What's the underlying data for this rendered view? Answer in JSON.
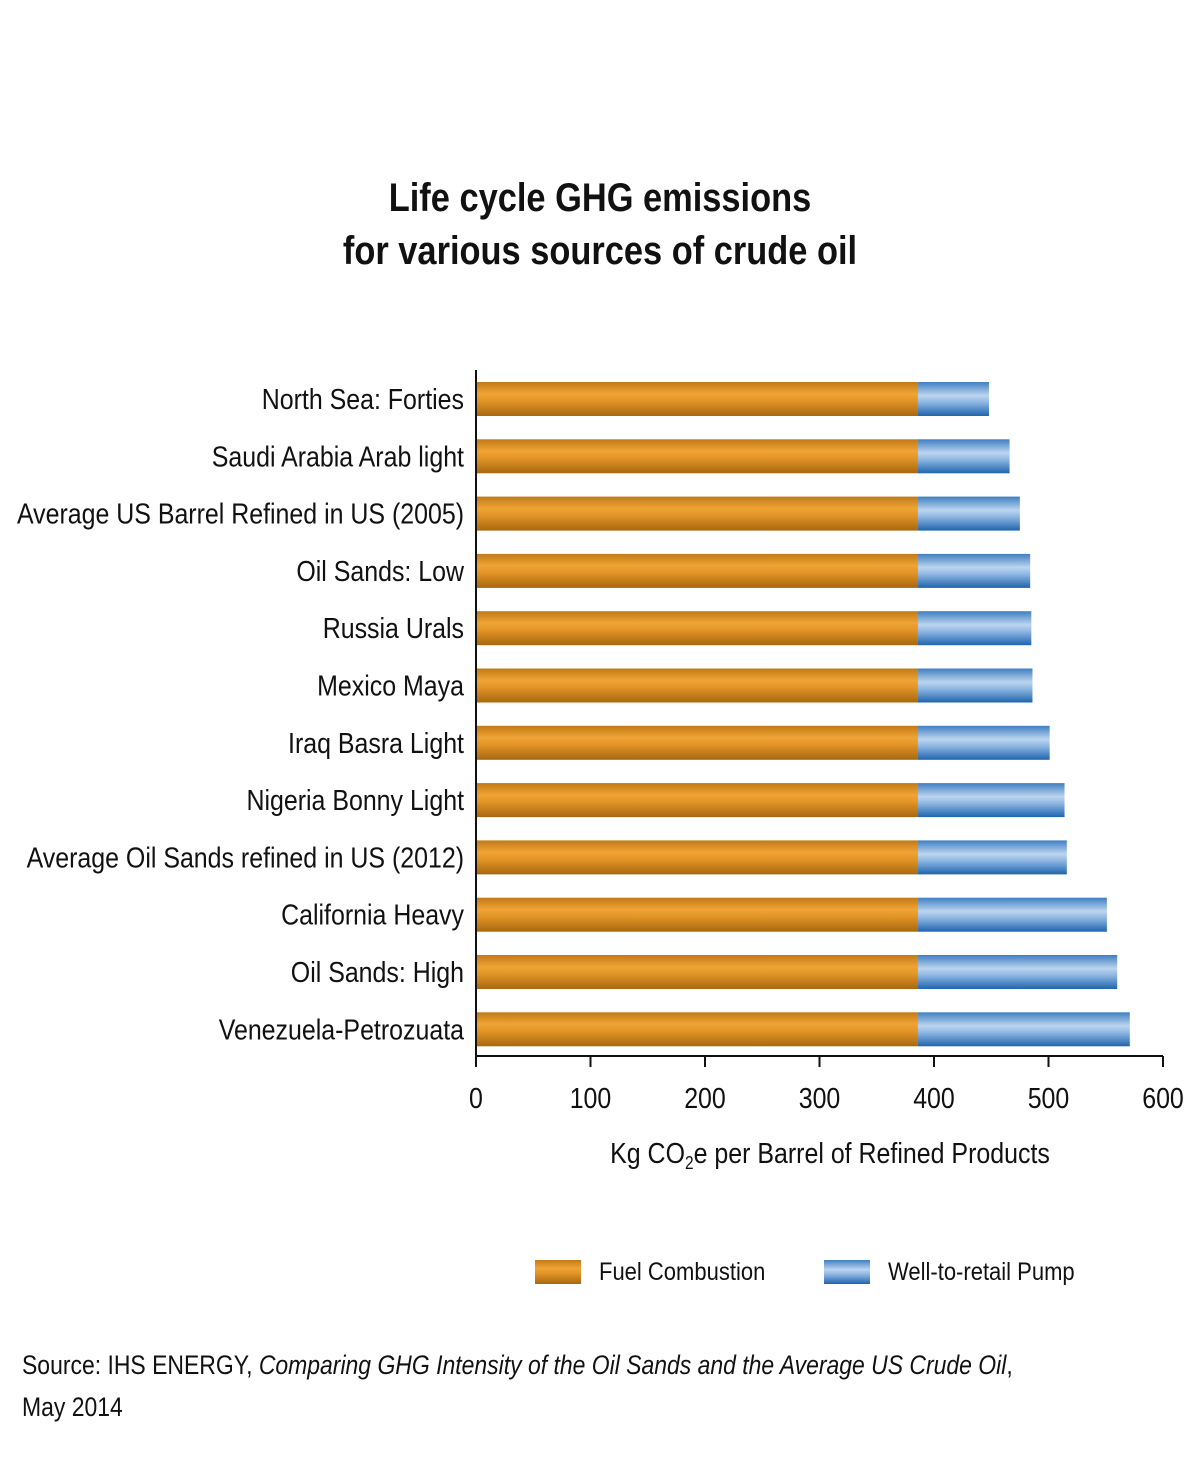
{
  "chart_data": {
    "type": "bar",
    "orientation": "horizontal",
    "stacked": true,
    "title_lines": [
      "Life cycle GHG emissions",
      "for various sources of crude oil"
    ],
    "categories": [
      "North Sea: Forties",
      "Saudi Arabia Arab light",
      "Average US Barrel Refined in US (2005)",
      "Oil Sands: Low",
      "Russia Urals",
      "Mexico Maya",
      "Iraq Basra Light",
      "Nigeria Bonny Light",
      "Average Oil Sands refined in US (2012)",
      "California Heavy",
      "Oil Sands: High",
      "Venezuela-Petrozuata"
    ],
    "series": [
      {
        "name": "Fuel Combustion",
        "color": "#d98b1e",
        "values": [
          386,
          386,
          386,
          386,
          386,
          386,
          386,
          386,
          386,
          386,
          386,
          386
        ]
      },
      {
        "name": "Well-to-retail Pump",
        "color": "#4f8fd0",
        "values": [
          62,
          80,
          89,
          98,
          99,
          100,
          115,
          128,
          130,
          165,
          174,
          185
        ]
      }
    ],
    "xlim": [
      0,
      600
    ],
    "xticks": [
      0,
      100,
      200,
      300,
      400,
      500,
      600
    ],
    "xlabel_parts": [
      "Kg CO",
      "2",
      "e per Barrel of Refined Products"
    ],
    "ylabel": "",
    "grid": false,
    "legend_position": "bottom"
  },
  "source": {
    "line1_prefix": "Source: IHS ENERGY, ",
    "line1_title": "Comparing GHG Intensity of the Oil Sands and the Average US Crude Oil",
    "line1_suffix": ",",
    "line2": "May 2014"
  }
}
